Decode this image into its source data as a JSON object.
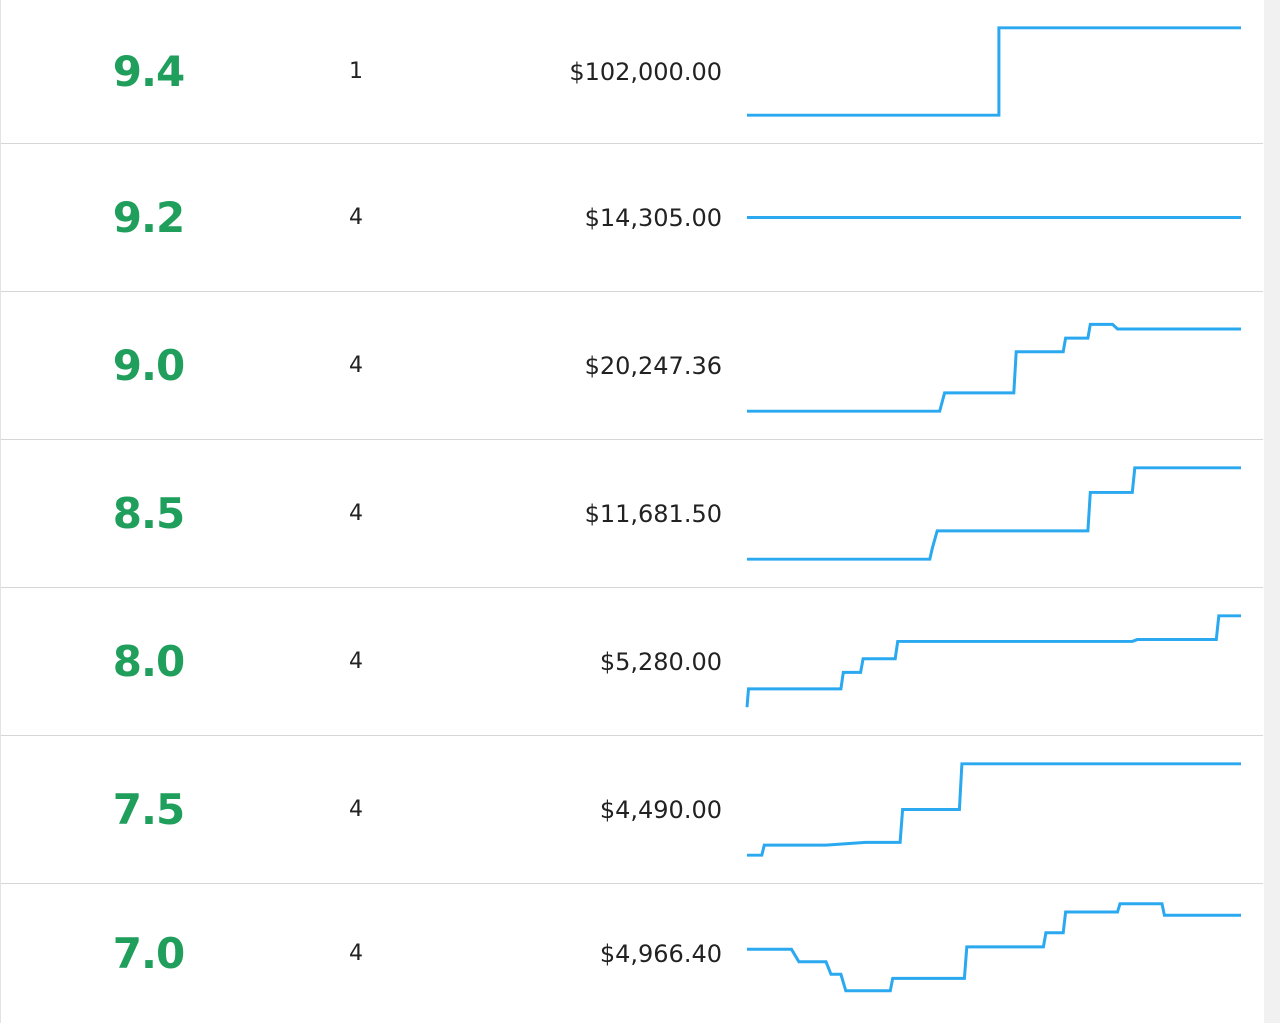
{
  "table": {
    "rows": [
      {
        "grade": "9.4",
        "count": "1",
        "price": "$102,000.00",
        "trend": [
          [
            0,
            0
          ],
          [
            0.51,
            0
          ],
          [
            0.51,
            1
          ],
          [
            1,
            1
          ]
        ]
      },
      {
        "grade": "9.2",
        "count": "4",
        "price": "$14,305.00",
        "trend": [
          [
            0,
            0.5
          ],
          [
            1,
            0.5
          ]
        ]
      },
      {
        "grade": "9.0",
        "count": "4",
        "price": "$20,247.36",
        "trend": [
          [
            0,
            0
          ],
          [
            0.39,
            0
          ],
          [
            0.4,
            0.2
          ],
          [
            0.54,
            0.2
          ],
          [
            0.545,
            0.65
          ],
          [
            0.64,
            0.65
          ],
          [
            0.645,
            0.8
          ],
          [
            0.69,
            0.8
          ],
          [
            0.695,
            0.95
          ],
          [
            0.74,
            0.95
          ],
          [
            0.75,
            0.9
          ],
          [
            1,
            0.9
          ]
        ]
      },
      {
        "grade": "8.5",
        "count": "4",
        "price": "$11,681.50",
        "trend": [
          [
            0,
            0
          ],
          [
            0.37,
            0
          ],
          [
            0.375,
            0.12
          ],
          [
            0.385,
            0.31
          ],
          [
            0.69,
            0.31
          ],
          [
            0.695,
            0.73
          ],
          [
            0.78,
            0.73
          ],
          [
            0.785,
            1
          ],
          [
            1,
            1
          ]
        ]
      },
      {
        "grade": "8.0",
        "count": "4",
        "price": "$5,280.00",
        "trend": [
          [
            0,
            0
          ],
          [
            0.003,
            0.2
          ],
          [
            0.19,
            0.2
          ],
          [
            0.195,
            0.38
          ],
          [
            0.23,
            0.38
          ],
          [
            0.235,
            0.53
          ],
          [
            0.3,
            0.53
          ],
          [
            0.305,
            0.72
          ],
          [
            0.78,
            0.72
          ],
          [
            0.79,
            0.74
          ],
          [
            0.95,
            0.74
          ],
          [
            0.955,
            1
          ],
          [
            1,
            1
          ]
        ]
      },
      {
        "grade": "7.5",
        "count": "4",
        "price": "$4,490.00",
        "trend": [
          [
            0,
            0
          ],
          [
            0.03,
            0
          ],
          [
            0.035,
            0.11
          ],
          [
            0.16,
            0.11
          ],
          [
            0.24,
            0.14
          ],
          [
            0.31,
            0.14
          ],
          [
            0.315,
            0.5
          ],
          [
            0.43,
            0.5
          ],
          [
            0.435,
            1
          ],
          [
            1,
            1
          ]
        ]
      },
      {
        "grade": "7.0",
        "count": "4",
        "price": "$4,966.40",
        "trend": [
          [
            0,
            0.55
          ],
          [
            0.09,
            0.55
          ],
          [
            0.105,
            0.4
          ],
          [
            0.16,
            0.4
          ],
          [
            0.17,
            0.25
          ],
          [
            0.19,
            0.25
          ],
          [
            0.2,
            0.05
          ],
          [
            0.29,
            0.05
          ],
          [
            0.295,
            0.2
          ],
          [
            0.44,
            0.2
          ],
          [
            0.445,
            0.58
          ],
          [
            0.6,
            0.58
          ],
          [
            0.605,
            0.75
          ],
          [
            0.64,
            0.75
          ],
          [
            0.645,
            1
          ],
          [
            0.75,
            1
          ],
          [
            0.755,
            1.1
          ],
          [
            0.84,
            1.1
          ],
          [
            0.845,
            0.96
          ],
          [
            1,
            0.96
          ]
        ]
      }
    ]
  }
}
